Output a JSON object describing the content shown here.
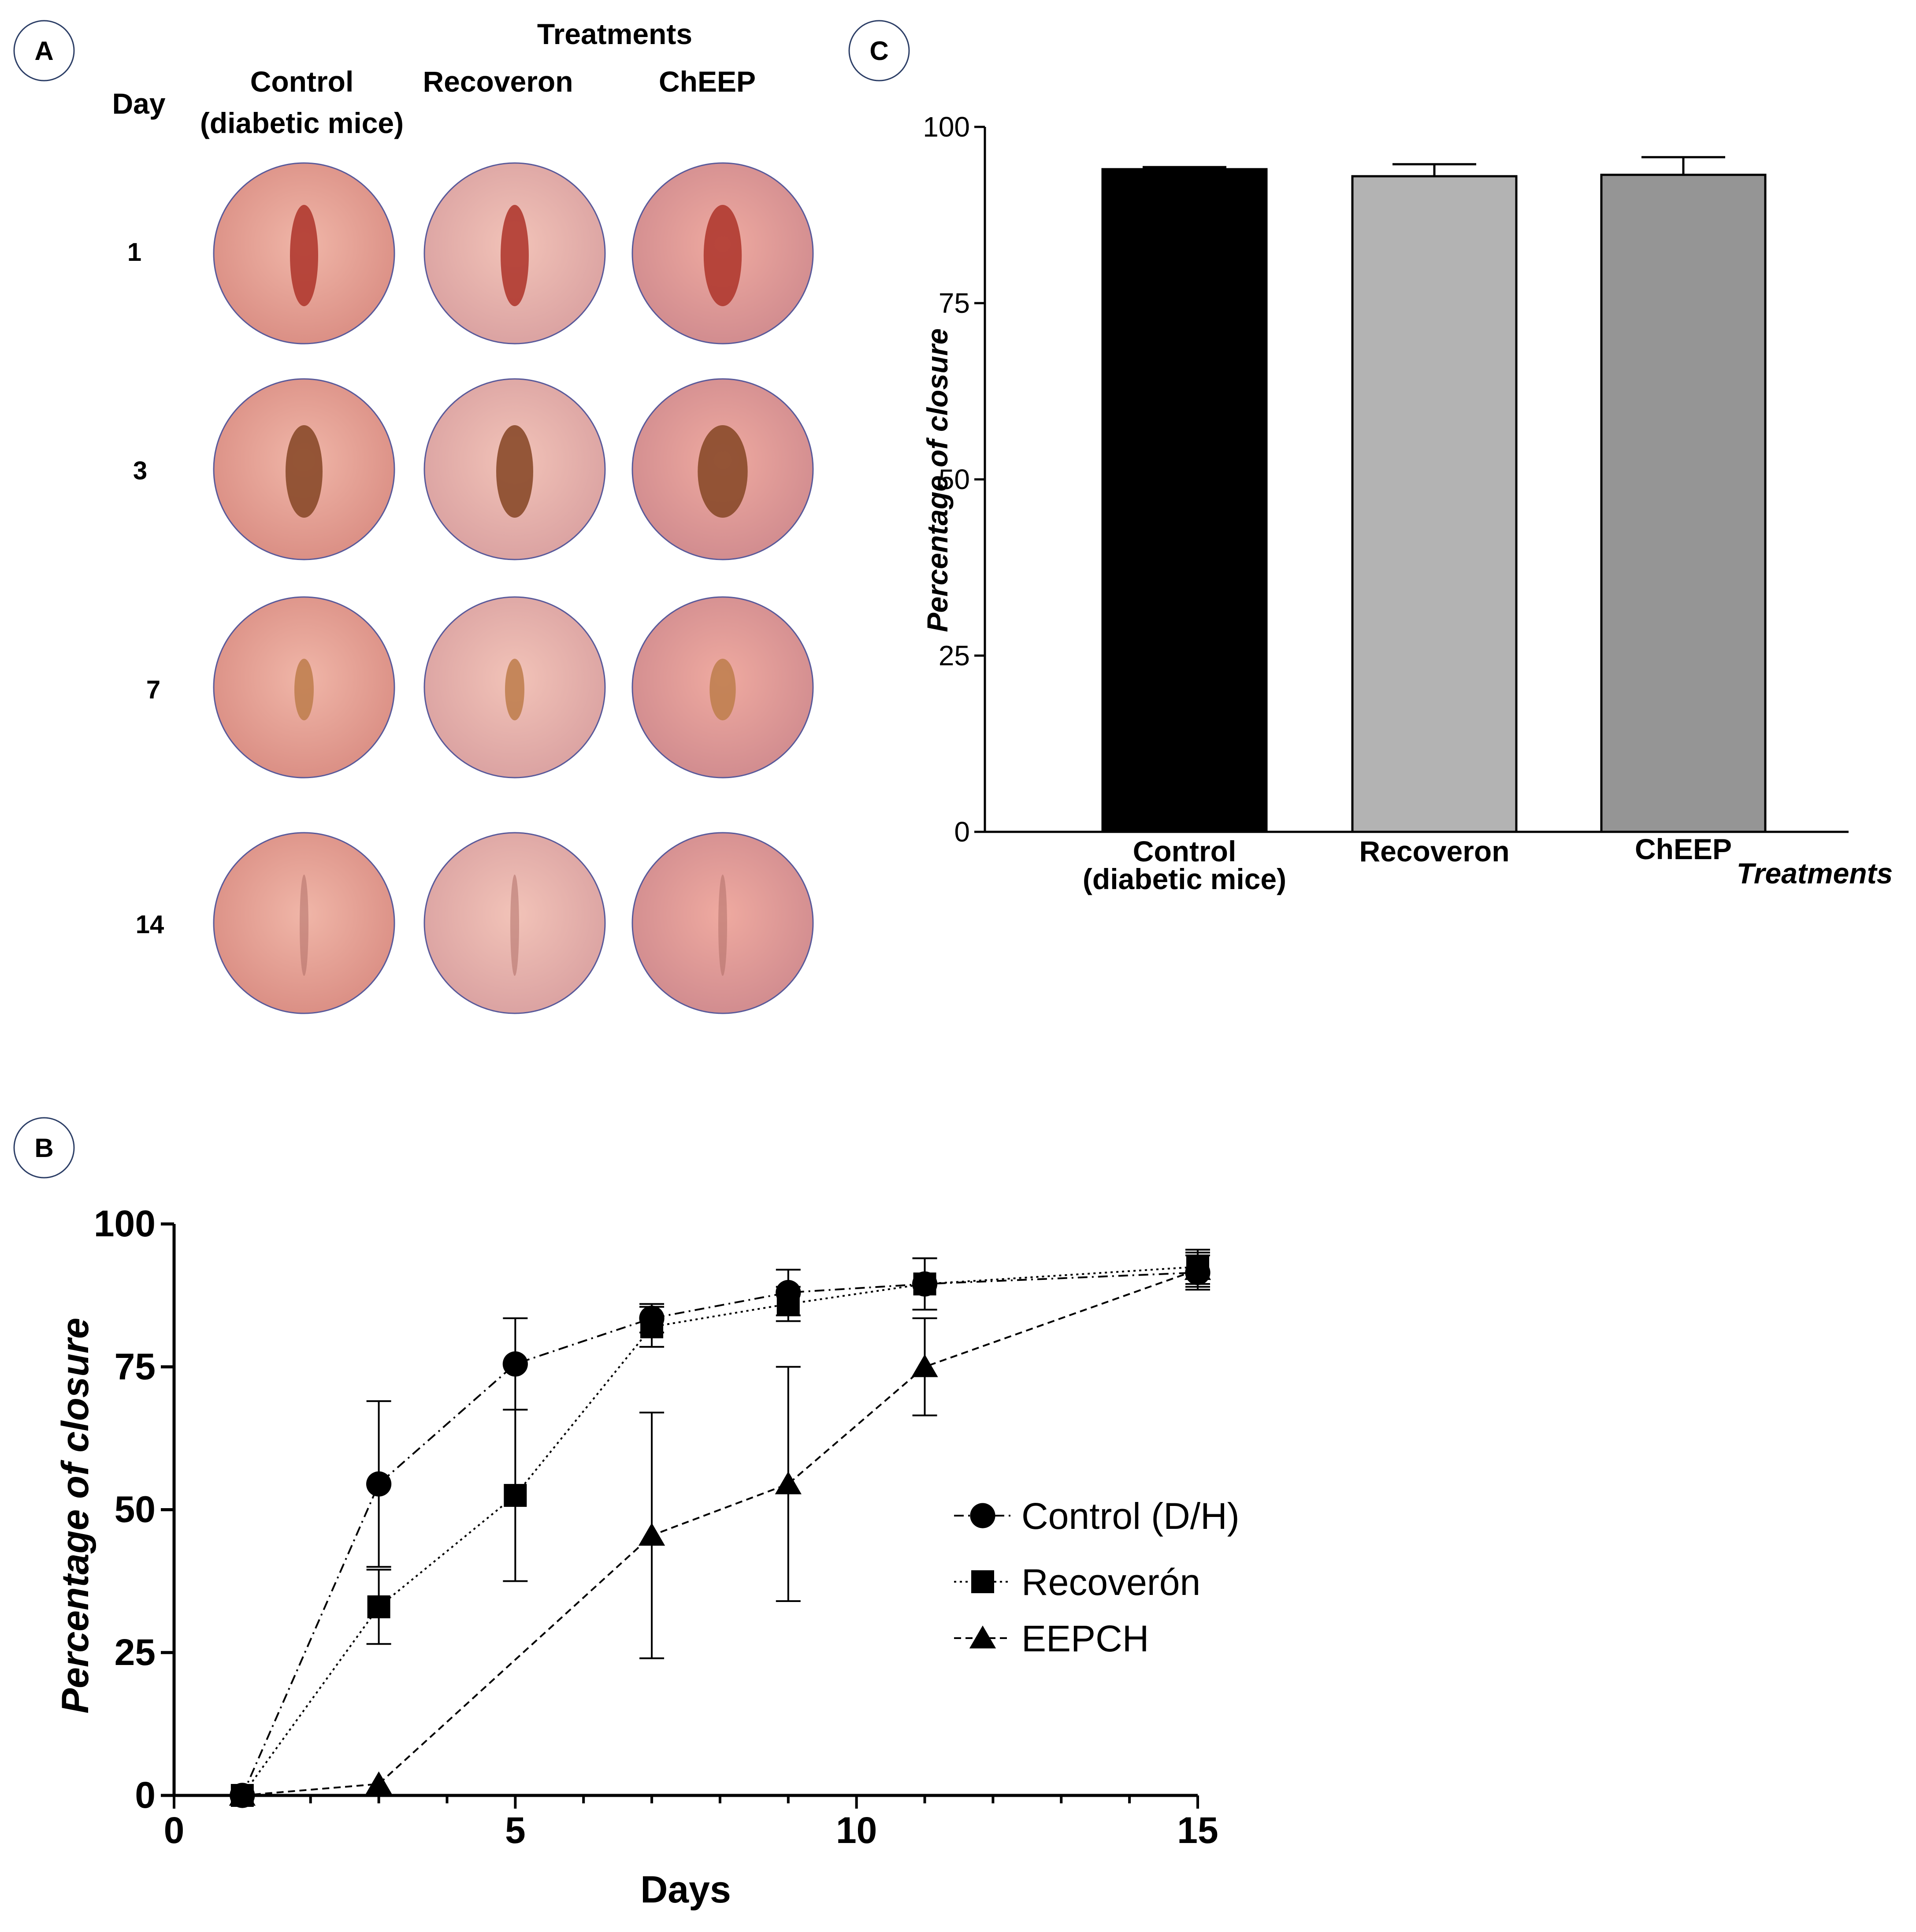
{
  "panel_a": {
    "badge": "A",
    "treatments_header": "Treatments",
    "day_header": "Day",
    "columns": [
      {
        "line1": "Control",
        "line2": "(diabetic mice)"
      },
      {
        "line1": "Recoveron",
        "line2": ""
      },
      {
        "line1": "ChEEP",
        "line2": ""
      }
    ],
    "days": [
      "1",
      "3",
      "7",
      "14"
    ],
    "photos": [
      {
        "day": "1",
        "tone": "#e8a090",
        "wound": "#b03a30",
        "wound_size": "large"
      },
      {
        "day": "3",
        "tone": "#e6ae9e",
        "wound": "#8a4a2a",
        "wound_size": "medium"
      },
      {
        "day": "7",
        "tone": "#e2a090",
        "wound": "#c08050",
        "wound_size": "small"
      },
      {
        "day": "14",
        "tone": "#dfa098",
        "wound": "#b07068",
        "wound_size": "scar"
      }
    ]
  },
  "panel_b": {
    "badge": "B",
    "chart_data": {
      "type": "line",
      "title": "",
      "xlabel": "Days",
      "ylabel": "Percentage of closure",
      "xlim": [
        0,
        15
      ],
      "ylim": [
        0,
        100
      ],
      "xticks": [
        "0",
        "5",
        "10",
        "15"
      ],
      "yticks": [
        "0",
        "25",
        "50",
        "75",
        "100"
      ],
      "legend_position": "center-right",
      "series": [
        {
          "name": "Control (D/H)",
          "marker": "circle",
          "dash": "dashdot",
          "x": [
            1,
            3,
            5,
            7,
            9,
            11,
            15
          ],
          "y": [
            0,
            54.5,
            75.5,
            83.5,
            88,
            89.5,
            91.5
          ],
          "err": [
            0,
            14.5,
            8,
            2.5,
            4,
            4.5,
            3
          ]
        },
        {
          "name": "Recoverón",
          "marker": "square",
          "dash": "dotted",
          "x": [
            1,
            3,
            5,
            7,
            9,
            11,
            15
          ],
          "y": [
            0,
            33,
            52.5,
            82,
            86,
            89.5,
            92.5
          ],
          "err": [
            0,
            6.5,
            15,
            3.5,
            3,
            4.5,
            3
          ]
        },
        {
          "name": "EEPCH",
          "marker": "triangle",
          "dash": "dashed",
          "x": [
            1,
            3,
            7,
            9,
            11,
            15
          ],
          "y": [
            0,
            2,
            45.5,
            54.5,
            75,
            92
          ],
          "err": [
            0,
            0,
            21.5,
            20.5,
            8.5,
            3
          ]
        }
      ]
    }
  },
  "panel_c": {
    "badge": "C",
    "chart_data": {
      "type": "bar",
      "title": "",
      "xlabel": "Treatments",
      "ylabel": "Percentage of closure",
      "ylim": [
        0,
        100
      ],
      "yticks": [
        "0",
        "25",
        "50",
        "75",
        "100"
      ],
      "categories": [
        {
          "line1": "Control",
          "line2": "(diabetic mice)"
        },
        {
          "line1": "Recoveron",
          "line2": ""
        },
        {
          "line1": "ChEEP",
          "line2": ""
        }
      ],
      "values": [
        94,
        93,
        93.2
      ],
      "errors": [
        0.3,
        1.7,
        2.5
      ],
      "colors": [
        "#000000",
        "#b3b3b3",
        "#959595"
      ]
    }
  }
}
